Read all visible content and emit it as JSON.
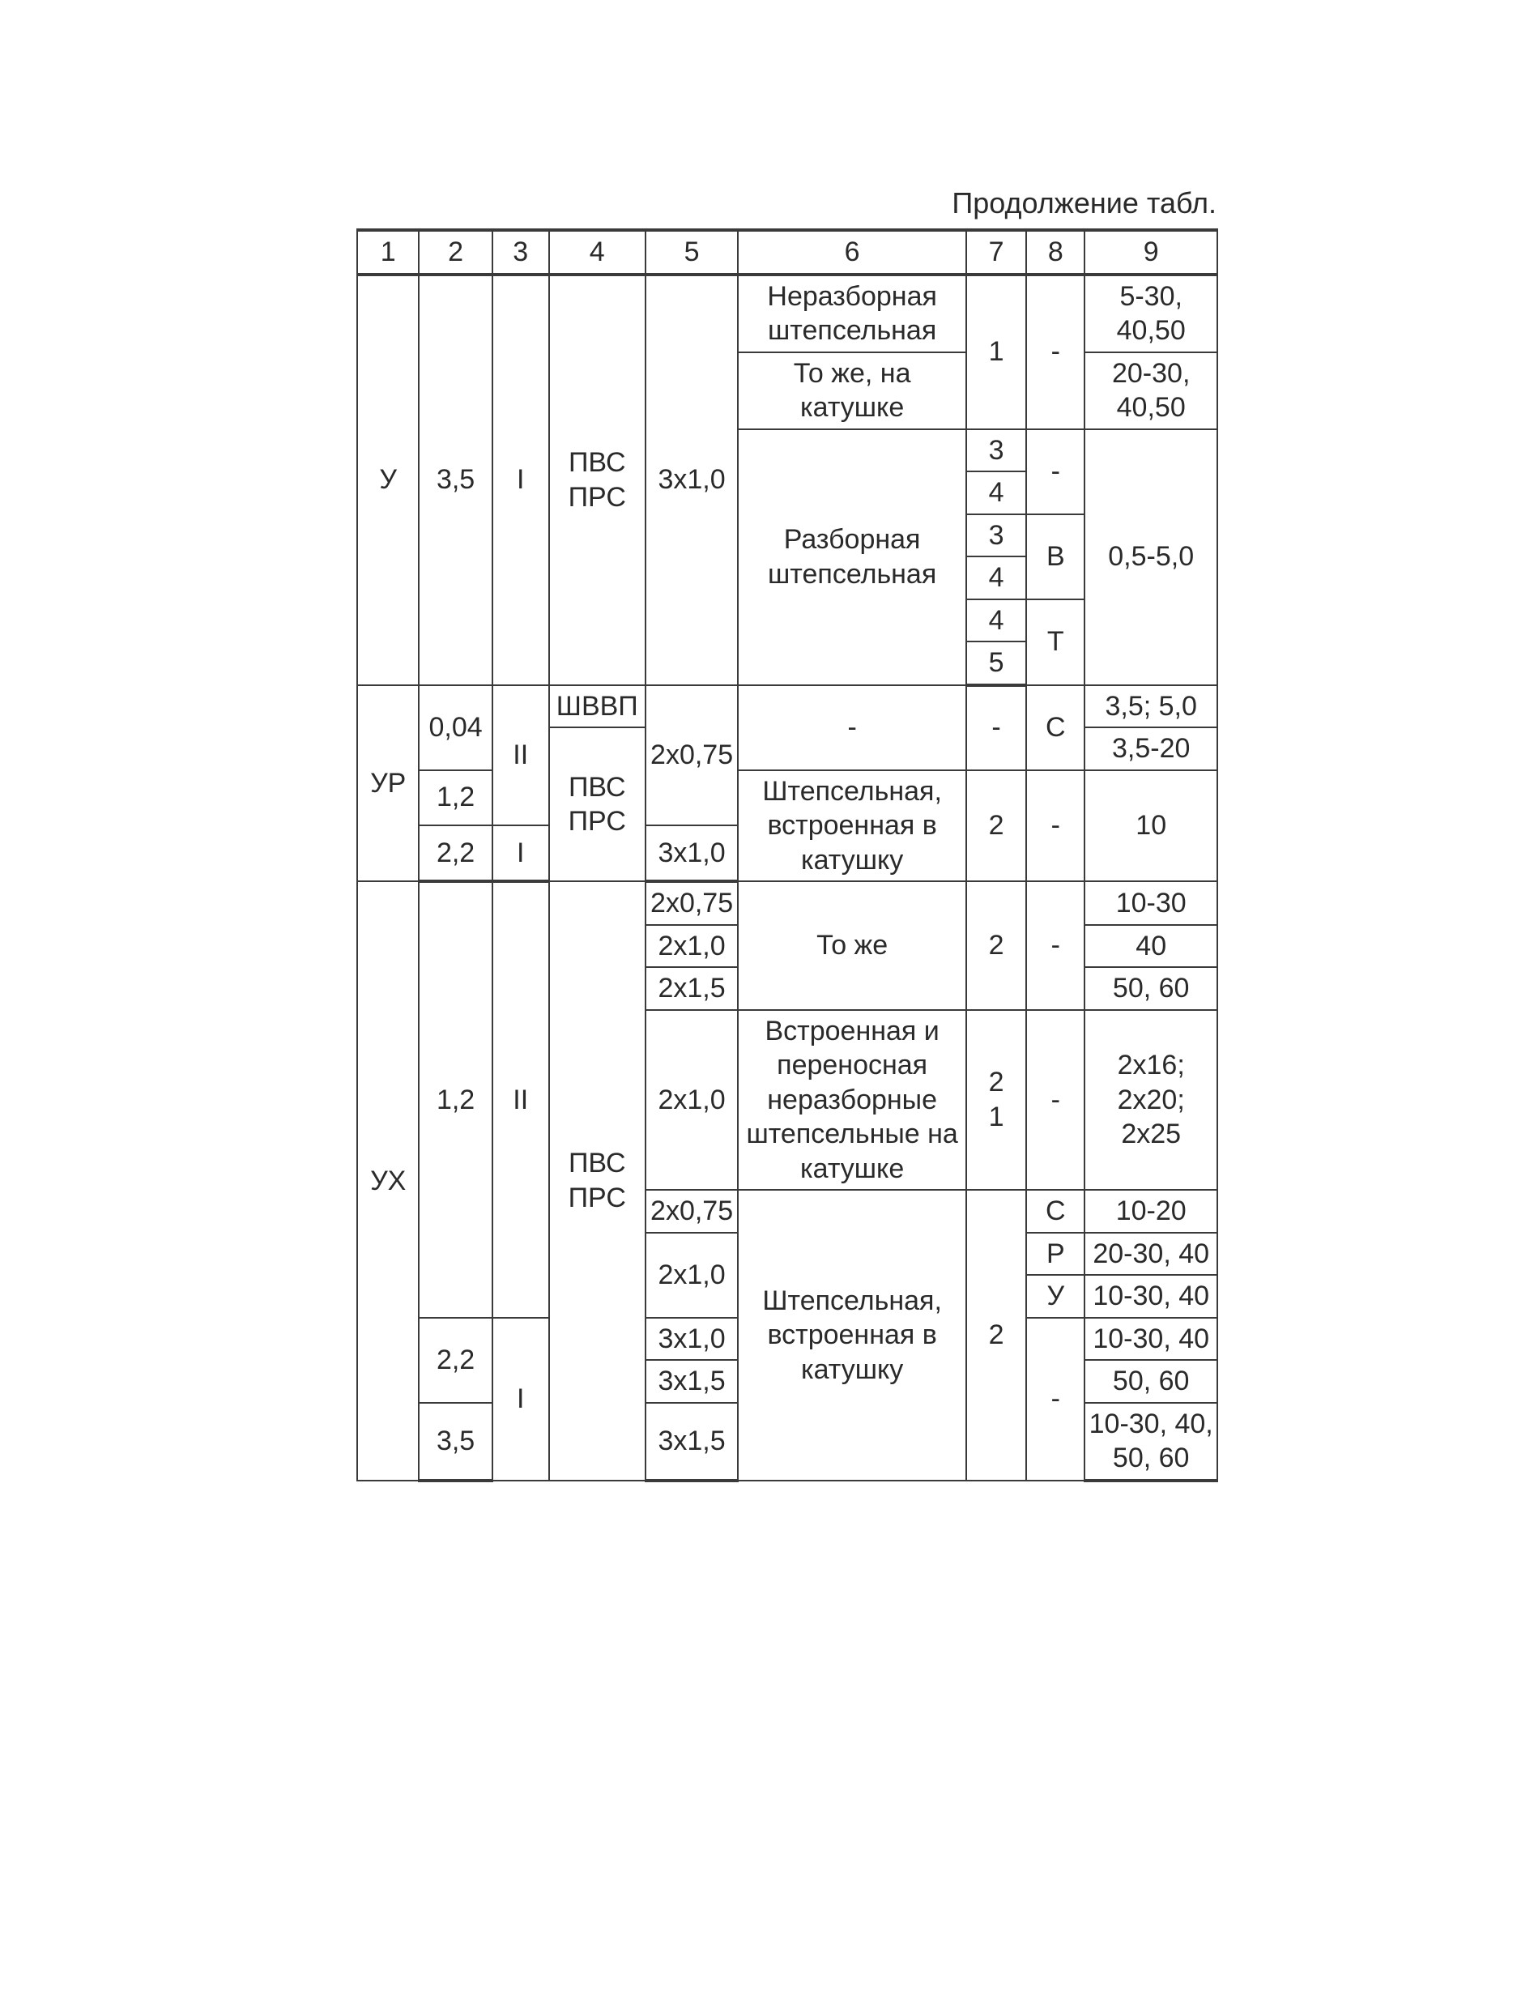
{
  "caption": "Продолжение табл.",
  "headers": [
    "1",
    "2",
    "3",
    "4",
    "5",
    "6",
    "7",
    "8",
    "9"
  ],
  "colors": {
    "background": "#ffffff",
    "text": "#2a2a2a",
    "border": "#3a3a3a"
  },
  "typography": {
    "font_family": "Arial",
    "body_fontsize_pt": 26,
    "caption_fontsize_pt": 27
  },
  "column_widths_pct": [
    7.2,
    8.5,
    6.6,
    11.2,
    10.8,
    26.5,
    7.0,
    6.8,
    15.4
  ],
  "groups": {
    "g1": {
      "c1": "У",
      "c2": "3,5",
      "c3": "I",
      "c4": "ПВС ПРС",
      "c5": "3x1,0",
      "rows": {
        "r1": {
          "c6": "Неразборная штепсельная",
          "c7": "1",
          "c8": "-",
          "c9": "5-30, 40,50"
        },
        "r2": {
          "c6": "То же, на катушке",
          "c9": "20-30, 40,50"
        },
        "r3": {
          "c6": "Разборная штепсельная",
          "c7_a": "3",
          "c7_b": "4",
          "c8": "-",
          "c9": "0,5-5,0"
        },
        "r4": {
          "c7_a": "3",
          "c7_b": "4",
          "c8": "В"
        },
        "r5": {
          "c7_a": "4",
          "c7_b": "5",
          "c8": "Т"
        }
      }
    },
    "g2": {
      "c1": "УР",
      "rows": {
        "r1": {
          "c2": "0,04",
          "c3": "II",
          "c4": "ШВВП",
          "c5": "2x0,75",
          "c6": "-",
          "c7": "-",
          "c8": "С",
          "c9": "3,5; 5,0"
        },
        "r2": {
          "c4": "ПВС ПРС",
          "c9": "3,5-20"
        },
        "r3": {
          "c2": "1,2",
          "c6": "Штепсельная, встроенная в катушку",
          "c7": "2",
          "c8": "-",
          "c9": "10"
        },
        "r4": {
          "c2": "2,2",
          "c3": "I",
          "c5": "3x1,0"
        }
      }
    },
    "g3": {
      "c1": "УХ",
      "c4": "ПВС ПРС",
      "block1": {
        "c2": "1,2",
        "c3": "II",
        "rows": {
          "r1": {
            "c5": "2x0,75",
            "c6": "То же",
            "c7": "2",
            "c8": "-",
            "c9": "10-30"
          },
          "r2": {
            "c5": "2x1,0",
            "c9": "40"
          },
          "r3": {
            "c5": "2x1,5",
            "c9": "50, 60"
          },
          "r4": {
            "c5": "2x1,0",
            "c6": "Встроенная и переносная неразборные штепсельные на катушке",
            "c7": "2\n1",
            "c8": "-",
            "c9": "2x16; 2x20; 2x25"
          },
          "r5": {
            "c5": "2x0,75",
            "c6": "Штепсельная, встроенная в катушку",
            "c7": "2",
            "c8": "С",
            "c9": "10-20"
          },
          "r6": {
            "c5": "2x1,0",
            "c8": "Р",
            "c9": "20-30, 40"
          },
          "r7": {
            "c8": "У",
            "c9": "10-30, 40"
          }
        }
      },
      "block2": {
        "c3": "I",
        "rows": {
          "r1": {
            "c2": "2,2",
            "c5": "3x1,0",
            "c8": "-",
            "c9": "10-30, 40"
          },
          "r2": {
            "c5": "3x1,5",
            "c9": "50, 60"
          },
          "r3": {
            "c2": "3,5",
            "c5": "3x1,5",
            "c9": "10-30, 40, 50, 60"
          }
        }
      }
    }
  }
}
